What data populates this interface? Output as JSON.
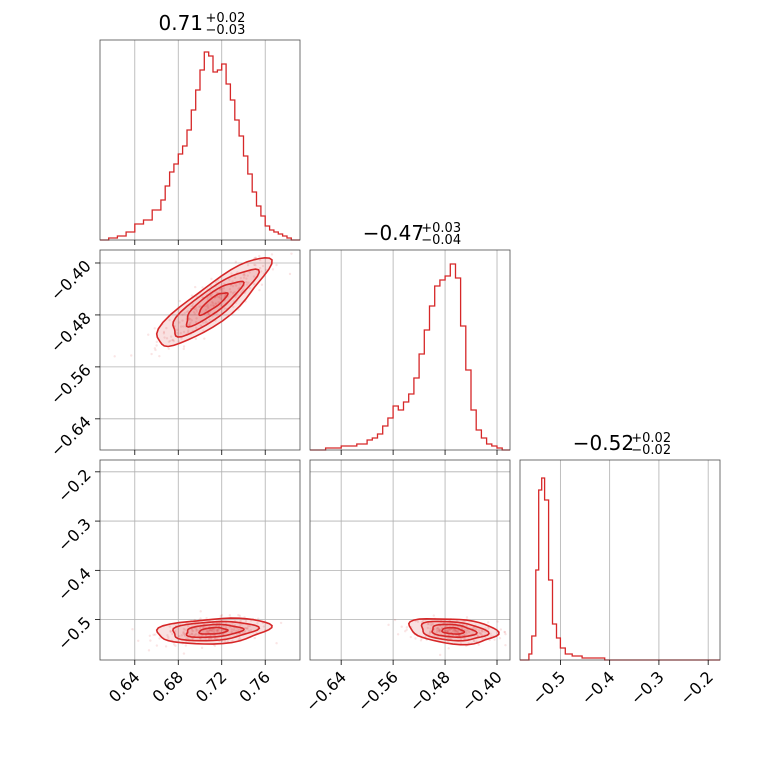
{
  "chart_data": {
    "type": "corner",
    "color": "#d62728",
    "grid": true,
    "parameters": [
      {
        "median": "0.71",
        "err_plus": "+0.02",
        "err_minus": "−0.03",
        "range": [
          0.608,
          0.792
        ],
        "ticks": [
          0.64,
          0.68,
          0.72,
          0.76
        ],
        "tick_labels": [
          "0.64",
          "0.68",
          "0.72",
          "0.76"
        ],
        "hist_x": [
          0.608,
          0.616,
          0.624,
          0.632,
          0.64,
          0.648,
          0.656,
          0.664,
          0.668,
          0.672,
          0.676,
          0.68,
          0.684,
          0.688,
          0.692,
          0.696,
          0.7,
          0.704,
          0.708,
          0.712,
          0.716,
          0.72,
          0.724,
          0.728,
          0.732,
          0.736,
          0.74,
          0.744,
          0.748,
          0.752,
          0.756,
          0.76,
          0.764,
          0.768,
          0.772,
          0.776,
          0.78,
          0.784,
          0.792
        ],
        "hist_y": [
          0.0,
          0.01,
          0.02,
          0.04,
          0.08,
          0.1,
          0.15,
          0.2,
          0.27,
          0.34,
          0.38,
          0.43,
          0.47,
          0.55,
          0.65,
          0.75,
          0.85,
          0.94,
          0.92,
          0.84,
          0.85,
          0.88,
          0.78,
          0.7,
          0.6,
          0.52,
          0.42,
          0.33,
          0.24,
          0.17,
          0.12,
          0.07,
          0.05,
          0.04,
          0.03,
          0.02,
          0.01,
          0.0,
          0.0
        ]
      },
      {
        "median": "−0.47",
        "err_plus": "+0.03",
        "err_minus": "−0.04",
        "range": [
          -0.688,
          -0.38
        ],
        "ticks": [
          -0.64,
          -0.56,
          -0.48,
          -0.4
        ],
        "tick_labels": [
          "−0.64",
          "−0.56",
          "−0.48",
          "−0.40"
        ],
        "hist_x": [
          -0.688,
          -0.664,
          -0.64,
          -0.616,
          -0.6,
          -0.592,
          -0.584,
          -0.576,
          -0.568,
          -0.56,
          -0.552,
          -0.544,
          -0.536,
          -0.528,
          -0.52,
          -0.512,
          -0.504,
          -0.496,
          -0.488,
          -0.48,
          -0.472,
          -0.464,
          -0.456,
          -0.448,
          -0.44,
          -0.432,
          -0.424,
          -0.416,
          -0.408,
          -0.4,
          -0.392,
          -0.38
        ],
        "hist_y": [
          0.0,
          0.01,
          0.02,
          0.03,
          0.05,
          0.06,
          0.08,
          0.12,
          0.16,
          0.22,
          0.2,
          0.24,
          0.28,
          0.36,
          0.48,
          0.6,
          0.72,
          0.82,
          0.85,
          0.87,
          0.93,
          0.86,
          0.62,
          0.4,
          0.2,
          0.1,
          0.06,
          0.03,
          0.02,
          0.01,
          0.0,
          0.0
        ]
      },
      {
        "median": "−0.52",
        "err_plus": "+0.02",
        "err_minus": "−0.02",
        "range": [
          -0.582,
          -0.176
        ],
        "ticks": [
          -0.5,
          -0.4,
          -0.3,
          -0.2
        ],
        "tick_labels": [
          "−0.5",
          "−0.4",
          "−0.3",
          "−0.2"
        ],
        "hist_x": [
          -0.582,
          -0.564,
          -0.558,
          -0.55,
          -0.544,
          -0.538,
          -0.532,
          -0.524,
          -0.516,
          -0.508,
          -0.5,
          -0.49,
          -0.476,
          -0.456,
          -0.436,
          -0.41,
          -0.176
        ],
        "hist_y": [
          0.0,
          0.03,
          0.12,
          0.45,
          0.85,
          0.91,
          0.8,
          0.4,
          0.18,
          0.11,
          0.06,
          0.03,
          0.02,
          0.01,
          0.01,
          0.0,
          0.0
        ]
      }
    ],
    "scatter_2d": [
      {
        "x_param": 0,
        "y_param": 1,
        "center": [
          0.712,
          -0.462
        ],
        "spread": [
          0.026,
          0.034
        ],
        "rho": 0.86
      },
      {
        "x_param": 0,
        "y_param": 2,
        "center": [
          0.712,
          -0.523
        ],
        "spread": [
          0.026,
          0.013
        ],
        "rho": 0.25
      },
      {
        "x_param": 1,
        "y_param": 2,
        "center": [
          -0.468,
          -0.523
        ],
        "spread": [
          0.034,
          0.013
        ],
        "rho": -0.25
      }
    ],
    "contour_levels": [
      0.5,
      1.0,
      1.5,
      2.0
    ]
  }
}
